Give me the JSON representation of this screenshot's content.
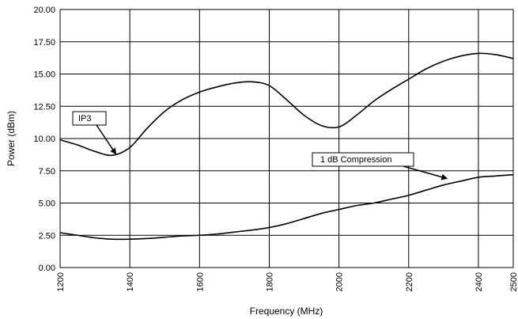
{
  "chart_data": {
    "type": "line",
    "title": "",
    "xlabel": "Frequency (MHz)",
    "ylabel": "Power (dBm)",
    "xlim": [
      1200,
      2500
    ],
    "ylim": [
      0,
      20
    ],
    "grid": true,
    "legend": "none",
    "x_ticks": [
      "1200",
      "1400",
      "1600",
      "1800",
      "2000",
      "2200",
      "2400",
      "2500"
    ],
    "y_ticks": [
      "0.00",
      "2.50",
      "5.00",
      "7.50",
      "10.00",
      "12.50",
      "15.00",
      "17.50",
      "20.00"
    ],
    "series": [
      {
        "x": [
          1200,
          1250,
          1300,
          1350,
          1400,
          1450,
          1500,
          1550,
          1600,
          1650,
          1700,
          1750,
          1800,
          1850,
          1900,
          1950,
          2000,
          2050,
          2100,
          2150,
          2200,
          2250,
          2300,
          2350,
          2400,
          2450,
          2500
        ],
        "y": [
          9.9,
          9.5,
          9.0,
          8.7,
          9.3,
          10.8,
          12.1,
          13.0,
          13.6,
          14.0,
          14.3,
          14.4,
          14.1,
          13.0,
          11.8,
          11.0,
          10.9,
          11.8,
          12.9,
          13.8,
          14.6,
          15.4,
          16.0,
          16.4,
          16.6,
          16.5,
          16.2
        ],
        "color": "#000000"
      },
      {
        "x": [
          1200,
          1250,
          1300,
          1350,
          1400,
          1450,
          1500,
          1550,
          1600,
          1650,
          1700,
          1750,
          1800,
          1850,
          1900,
          1950,
          2000,
          2050,
          2100,
          2150,
          2200,
          2250,
          2300,
          2350,
          2400,
          2450,
          2500
        ],
        "y": [
          2.7,
          2.5,
          2.3,
          2.2,
          2.2,
          2.25,
          2.35,
          2.45,
          2.5,
          2.6,
          2.75,
          2.9,
          3.1,
          3.4,
          3.8,
          4.2,
          4.5,
          4.8,
          5.0,
          5.3,
          5.6,
          6.0,
          6.4,
          6.7,
          7.0,
          7.1,
          7.2
        ],
        "color": "#000000"
      }
    ],
    "annotations": [
      {
        "text": "IP3",
        "x": 1360,
        "y": 8.8
      },
      {
        "text": "1 dB Compression",
        "x": 2310,
        "y": 6.9
      }
    ]
  }
}
